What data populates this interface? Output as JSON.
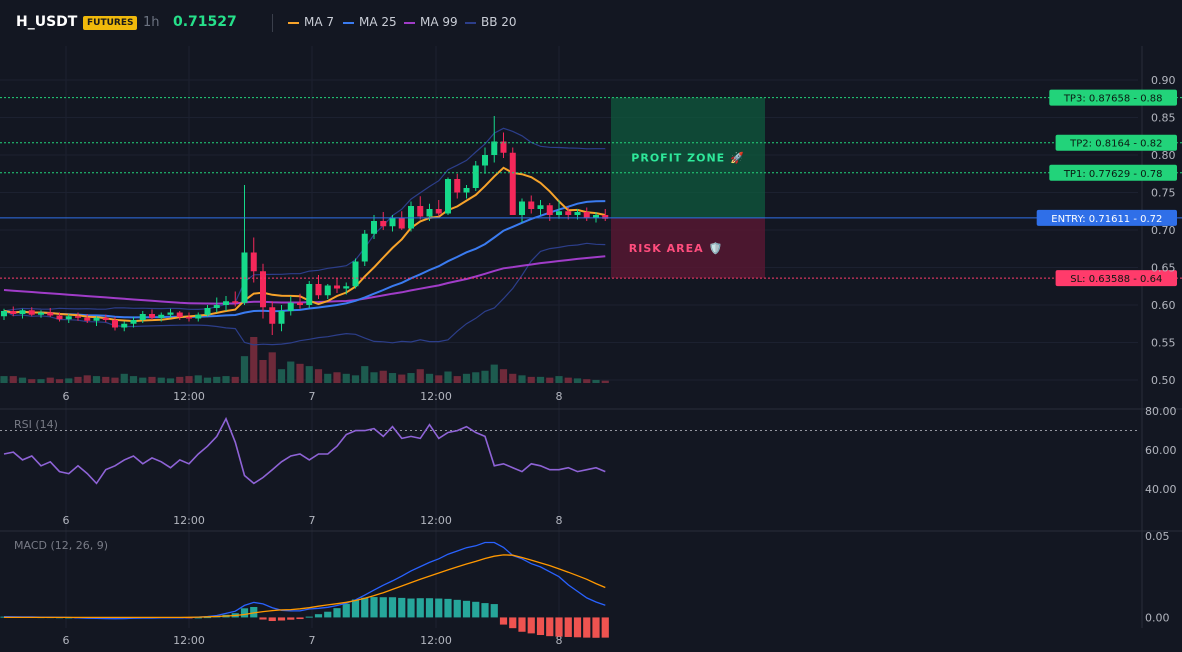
{
  "header": {
    "symbol": "H_USDT",
    "badge": "FUTURES",
    "interval": "1h",
    "price": "0.71527",
    "legend": [
      {
        "label": "MA 7",
        "color": "#f7a32a"
      },
      {
        "label": "MA 25",
        "color": "#3a7bf0"
      },
      {
        "label": "MA 99",
        "color": "#a03cc8"
      },
      {
        "label": "BB 20",
        "color": "#2c3e8a"
      }
    ]
  },
  "zones": {
    "profit_label": "PROFIT ZONE 🚀",
    "risk_label": "RISK AREA 🛡️"
  },
  "levels": [
    {
      "label": "TP3: 0.87658",
      "axis": "0.88",
      "value": 0.87658,
      "color": "#22d37a",
      "style": "dotted"
    },
    {
      "label": "TP2: 0.8164",
      "axis": "0.82",
      "value": 0.8164,
      "color": "#22d37a",
      "style": "dotted"
    },
    {
      "label": "TP1: 0.77629",
      "axis": "0.78",
      "value": 0.77629,
      "color": "#22d37a",
      "style": "dotted"
    },
    {
      "label": "ENTRY: 0.71611",
      "axis": "0.72",
      "value": 0.71611,
      "color": "#2f6fe8",
      "style": "solid"
    },
    {
      "label": "SL: 0.63588",
      "axis": "0.64",
      "value": 0.63588,
      "color": "#ff3b6b",
      "style": "dotted"
    }
  ],
  "x_ticks": [
    "6",
    "12:00",
    "7",
    "12:00",
    "8"
  ],
  "chart_data": [
    {
      "type": "candlestick",
      "ylim": [
        0.5,
        0.9
      ],
      "yticks": [
        "0.90",
        "0.85",
        "0.80",
        "0.75",
        "0.70",
        "0.65",
        "0.60",
        "0.55",
        "0.50"
      ],
      "candles": [
        [
          0.585,
          0.595,
          0.58,
          0.592
        ],
        [
          0.592,
          0.598,
          0.585,
          0.588
        ],
        [
          0.588,
          0.595,
          0.582,
          0.593
        ],
        [
          0.593,
          0.597,
          0.585,
          0.587
        ],
        [
          0.587,
          0.593,
          0.583,
          0.59
        ],
        [
          0.59,
          0.596,
          0.584,
          0.586
        ],
        [
          0.586,
          0.59,
          0.578,
          0.581
        ],
        [
          0.581,
          0.588,
          0.576,
          0.585
        ],
        [
          0.585,
          0.59,
          0.579,
          0.583
        ],
        [
          0.583,
          0.588,
          0.576,
          0.579
        ],
        [
          0.579,
          0.585,
          0.572,
          0.583
        ],
        [
          0.583,
          0.587,
          0.577,
          0.58
        ],
        [
          0.58,
          0.584,
          0.566,
          0.57
        ],
        [
          0.57,
          0.578,
          0.565,
          0.575
        ],
        [
          0.575,
          0.584,
          0.57,
          0.58
        ],
        [
          0.58,
          0.592,
          0.576,
          0.588
        ],
        [
          0.588,
          0.594,
          0.58,
          0.583
        ],
        [
          0.583,
          0.59,
          0.578,
          0.587
        ],
        [
          0.587,
          0.595,
          0.583,
          0.59
        ],
        [
          0.59,
          0.592,
          0.58,
          0.584
        ],
        [
          0.584,
          0.59,
          0.578,
          0.582
        ],
        [
          0.582,
          0.59,
          0.578,
          0.587
        ],
        [
          0.587,
          0.6,
          0.584,
          0.596
        ],
        [
          0.596,
          0.61,
          0.59,
          0.6
        ],
        [
          0.6,
          0.612,
          0.592,
          0.605
        ],
        [
          0.605,
          0.618,
          0.598,
          0.603
        ],
        [
          0.603,
          0.76,
          0.6,
          0.67
        ],
        [
          0.67,
          0.69,
          0.63,
          0.645
        ],
        [
          0.645,
          0.655,
          0.582,
          0.597
        ],
        [
          0.597,
          0.605,
          0.56,
          0.575
        ],
        [
          0.575,
          0.6,
          0.565,
          0.592
        ],
        [
          0.592,
          0.612,
          0.586,
          0.603
        ],
        [
          0.603,
          0.615,
          0.595,
          0.6
        ],
        [
          0.6,
          0.632,
          0.596,
          0.628
        ],
        [
          0.628,
          0.64,
          0.608,
          0.613
        ],
        [
          0.613,
          0.628,
          0.608,
          0.626
        ],
        [
          0.626,
          0.636,
          0.616,
          0.622
        ],
        [
          0.622,
          0.63,
          0.614,
          0.625
        ],
        [
          0.625,
          0.662,
          0.622,
          0.658
        ],
        [
          0.658,
          0.7,
          0.652,
          0.695
        ],
        [
          0.695,
          0.72,
          0.688,
          0.712
        ],
        [
          0.712,
          0.724,
          0.7,
          0.705
        ],
        [
          0.705,
          0.72,
          0.698,
          0.716
        ],
        [
          0.716,
          0.725,
          0.7,
          0.702
        ],
        [
          0.702,
          0.738,
          0.698,
          0.732
        ],
        [
          0.732,
          0.745,
          0.714,
          0.718
        ],
        [
          0.718,
          0.735,
          0.712,
          0.728
        ],
        [
          0.728,
          0.74,
          0.718,
          0.722
        ],
        [
          0.722,
          0.77,
          0.72,
          0.768
        ],
        [
          0.768,
          0.775,
          0.742,
          0.75
        ],
        [
          0.75,
          0.76,
          0.742,
          0.756
        ],
        [
          0.756,
          0.792,
          0.752,
          0.786
        ],
        [
          0.786,
          0.81,
          0.775,
          0.8
        ],
        [
          0.8,
          0.852,
          0.79,
          0.818
        ],
        [
          0.818,
          0.83,
          0.796,
          0.803
        ],
        [
          0.803,
          0.81,
          0.72,
          0.72
        ],
        [
          0.72,
          0.742,
          0.71,
          0.738
        ],
        [
          0.738,
          0.746,
          0.722,
          0.728
        ],
        [
          0.728,
          0.74,
          0.72,
          0.733
        ],
        [
          0.733,
          0.736,
          0.712,
          0.72
        ],
        [
          0.72,
          0.74,
          0.715,
          0.725
        ],
        [
          0.725,
          0.73,
          0.714,
          0.72
        ],
        [
          0.72,
          0.728,
          0.714,
          0.724
        ],
        [
          0.724,
          0.73,
          0.712,
          0.716
        ],
        [
          0.716,
          0.724,
          0.71,
          0.72
        ],
        [
          0.72,
          0.728,
          0.712,
          0.715
        ]
      ],
      "volume": [
        9,
        9,
        7,
        5,
        5,
        7,
        5,
        6,
        8,
        10,
        9,
        8,
        7,
        12,
        9,
        7,
        8,
        7,
        6,
        8,
        9,
        10,
        7,
        8,
        9,
        8,
        35,
        60,
        30,
        40,
        18,
        28,
        25,
        22,
        18,
        12,
        14,
        12,
        10,
        22,
        14,
        16,
        13,
        11,
        13,
        18,
        12,
        10,
        15,
        9,
        12,
        14,
        16,
        24,
        18,
        12,
        10,
        8,
        8,
        7,
        9,
        7,
        6,
        5,
        4,
        3
      ]
    },
    {
      "type": "line",
      "title": "RSI (14)",
      "ylim": [
        35,
        80
      ],
      "yticks": [
        "80.00",
        "60.00",
        "40.00"
      ],
      "values": [
        58,
        59,
        55,
        57,
        52,
        54,
        49,
        48,
        52,
        48,
        43,
        50,
        52,
        55,
        57,
        53,
        56,
        54,
        51,
        55,
        53,
        58,
        62,
        67,
        76,
        64,
        47,
        43,
        46,
        50,
        54,
        57,
        58,
        55,
        58,
        58,
        62,
        68,
        70,
        70,
        71,
        67,
        72,
        66,
        67,
        66,
        73,
        66,
        69,
        70,
        72,
        69,
        67,
        52,
        53,
        51,
        49,
        53,
        52,
        50,
        50,
        51,
        49,
        50,
        51,
        49
      ]
    },
    {
      "type": "line",
      "title": "MACD (12, 26, 9)",
      "ylim": [
        -0.02,
        0.05
      ],
      "yticks": [
        "0.05",
        "0.00"
      ],
      "macd": [
        0.0005,
        0.0004,
        0.0003,
        0.0003,
        0.0002,
        0.0002,
        0.0001,
        0,
        -0.0003,
        -0.0005,
        -0.0006,
        -0.0007,
        -0.0008,
        -0.0007,
        -0.0005,
        -0.0004,
        -0.0004,
        -0.0003,
        -0.0002,
        -0.0002,
        -0.0001,
        0.0002,
        0.0006,
        0.0012,
        0.0025,
        0.0038,
        0.0074,
        0.0092,
        0.0083,
        0.006,
        0.0044,
        0.0041,
        0.004,
        0.0052,
        0.0056,
        0.0062,
        0.0073,
        0.0087,
        0.0108,
        0.0137,
        0.0168,
        0.0198,
        0.0224,
        0.0254,
        0.0286,
        0.0312,
        0.0338,
        0.036,
        0.0388,
        0.0408,
        0.0428,
        0.044,
        0.046,
        0.046,
        0.043,
        0.038,
        0.036,
        0.033,
        0.031,
        0.028,
        0.025,
        0.02,
        0.016,
        0.012,
        0.0095,
        0.0075
      ],
      "signal": [
        0,
        0,
        0,
        0,
        0,
        0,
        0,
        0,
        0,
        0,
        0,
        0,
        0,
        0,
        0,
        0,
        0,
        0,
        0,
        0,
        0.0001,
        0.0002,
        0.0004,
        0.0006,
        0.0009,
        0.0012,
        0.0018,
        0.0028,
        0.0036,
        0.0042,
        0.0046,
        0.0048,
        0.0053,
        0.006,
        0.0069,
        0.0077,
        0.0084,
        0.0093,
        0.0104,
        0.0118,
        0.0134,
        0.0152,
        0.0172,
        0.0193,
        0.0214,
        0.0234,
        0.0254,
        0.0273,
        0.0292,
        0.031,
        0.0328,
        0.0344,
        0.0362,
        0.0376,
        0.0384,
        0.0382,
        0.0368,
        0.0352,
        0.0335,
        0.0318,
        0.0298,
        0.0278,
        0.0256,
        0.0234,
        0.0208,
        0.0184
      ],
      "histogram": [
        0.0005,
        0.0004,
        0.0003,
        0.0003,
        0.0002,
        0.0002,
        0.0001,
        0,
        -0.0003,
        -0.0005,
        -0.0006,
        -0.0007,
        -0.0008,
        -0.0007,
        -0.0005,
        -0.0004,
        -0.0004,
        -0.0003,
        -0.0002,
        -0.0002,
        -0.0002,
        0,
        0.0002,
        0.0006,
        0.0016,
        0.0026,
        0.0056,
        0.0064,
        -0.0013,
        -0.0022,
        -0.0019,
        -0.0014,
        -0.001,
        0.0005,
        0.002,
        0.0035,
        0.0057,
        0.0084,
        0.011,
        0.0121,
        0.0125,
        0.0124,
        0.0124,
        0.012,
        0.0116,
        0.0118,
        0.0118,
        0.0116,
        0.0114,
        0.0108,
        0.0102,
        0.0096,
        0.0088,
        0.0082,
        -0.0044,
        -0.0066,
        -0.0088,
        -0.0098,
        -0.0108,
        -0.0115,
        -0.0118,
        -0.012,
        -0.0122,
        -0.0124,
        -0.0125,
        -0.0124
      ]
    }
  ]
}
